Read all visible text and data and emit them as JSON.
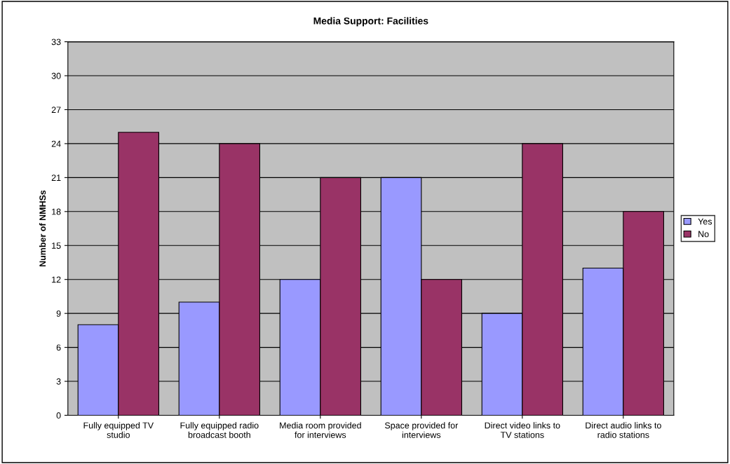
{
  "chart_data": {
    "type": "bar",
    "title": "Media Support: Facilities",
    "ylabel": "Number of NMHSs",
    "categories": [
      "Fully equipped TV\nstudio",
      "Fully equipped radio\nbroadcast booth",
      "Media room provided\nfor interviews",
      "Space provided for\ninterviews",
      "Direct video links to\nTV stations",
      "Direct audio links to\nradio stations"
    ],
    "series": [
      {
        "name": "Yes",
        "color": "#9999ff",
        "values": [
          8,
          10,
          12,
          21,
          9,
          13
        ]
      },
      {
        "name": "No",
        "color": "#993366",
        "values": [
          25,
          24,
          21,
          12,
          24,
          18
        ]
      }
    ],
    "ylim": [
      0,
      33
    ],
    "yticks": [
      0,
      3,
      6,
      9,
      12,
      15,
      18,
      21,
      24,
      27,
      30,
      33
    ],
    "grid": "y",
    "legend": "right"
  }
}
